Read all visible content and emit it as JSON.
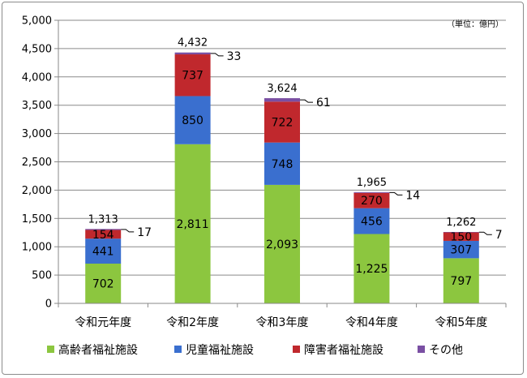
{
  "chart_data": {
    "type": "bar",
    "stacked": true,
    "unit": "（単位：億円）",
    "categories": [
      "令和元年度",
      "令和2年度",
      "令和3年度",
      "令和4年度",
      "令和5年度"
    ],
    "series": [
      {
        "name": "高齢者福祉施設",
        "color": "#8cc63f",
        "values": [
          702,
          2811,
          2093,
          1225,
          797
        ],
        "labels": [
          "702",
          "2,811",
          "2,093",
          "1,225",
          "797"
        ]
      },
      {
        "name": "児童福祉施設",
        "color": "#3a6fcf",
        "values": [
          441,
          850,
          748,
          456,
          307
        ],
        "labels": [
          "441",
          "850",
          "748",
          "456",
          "307"
        ]
      },
      {
        "name": "障害者福祉施設",
        "color": "#c0282d",
        "values": [
          154,
          737,
          722,
          270,
          150
        ],
        "labels": [
          "154",
          "737",
          "722",
          "270",
          "150"
        ]
      },
      {
        "name": "その他",
        "color": "#7a4fa3",
        "values": [
          17,
          33,
          61,
          14,
          7
        ],
        "labels": [
          "17",
          "33",
          "61",
          "14",
          "7"
        ]
      }
    ],
    "totals": [
      "1,313",
      "4,432",
      "3,624",
      "1,965",
      "1,262"
    ],
    "ylim": [
      0,
      5000
    ],
    "yticks": [
      0,
      500,
      1000,
      1500,
      2000,
      2500,
      3000,
      3500,
      4000,
      4500,
      5000
    ],
    "ytick_labels": [
      "0",
      "500",
      "1,000",
      "1,500",
      "2,000",
      "2,500",
      "3,000",
      "3,500",
      "4,000",
      "4,500",
      "5,000"
    ],
    "grid": true,
    "legend": "bottom"
  }
}
